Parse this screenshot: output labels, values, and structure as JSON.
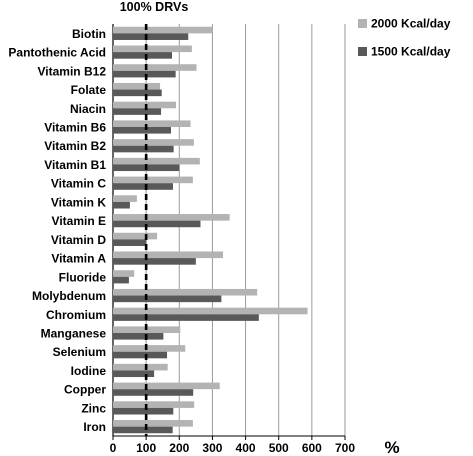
{
  "chart_data": {
    "type": "bar",
    "orientation": "horizontal",
    "title": "100% DRVs",
    "xlabel": "%",
    "ylabel": "",
    "xlim": [
      0,
      700
    ],
    "x_ticks": [
      "0",
      "100",
      "200",
      "300",
      "400",
      "500",
      "600",
      "700"
    ],
    "grid": "vertical",
    "legend_position": "top-right",
    "reference_line": {
      "value": 100,
      "style": "dashed"
    },
    "categories": [
      "Biotin",
      "Pantothenic Acid",
      "Vitamin B12",
      "Folate",
      "Niacin",
      "Vitamin B6",
      "Vitamin B2",
      "Vitamin B1",
      "Vitamin C",
      "Vitamin K",
      "Vitamin E",
      "Vitamin D",
      "Vitamin A",
      "Fluoride",
      "Molybdenum",
      "Chromium",
      "Manganese",
      "Selenium",
      "Iodine",
      "Copper",
      "Zinc",
      "Iron"
    ],
    "series": [
      {
        "name": "2000 Kcal/day",
        "color": "#b3b3b3",
        "values": [
          300,
          238,
          252,
          142,
          190,
          234,
          244,
          262,
          241,
          72,
          352,
          133,
          332,
          64,
          435,
          587,
          203,
          218,
          165,
          322,
          245,
          241
        ]
      },
      {
        "name": "1500 Kcal/day",
        "color": "#595959",
        "values": [
          227,
          178,
          189,
          147,
          145,
          175,
          183,
          200,
          181,
          51,
          264,
          100,
          250,
          48,
          327,
          440,
          152,
          163,
          124,
          242,
          182,
          180
        ]
      }
    ]
  }
}
